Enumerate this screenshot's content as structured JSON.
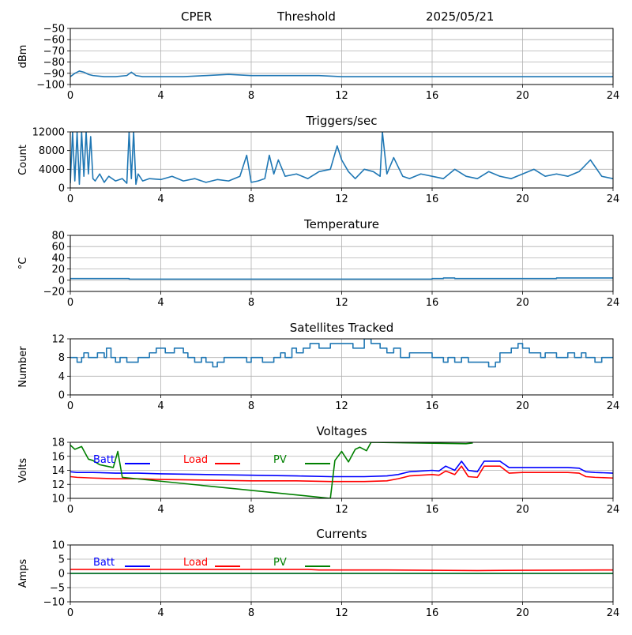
{
  "header": {
    "site": "CPER",
    "mode": "Threshold",
    "date": "2025/05/21"
  },
  "colors": {
    "series_default": "#1f77b4",
    "batt": "#0000ff",
    "load": "#ff0000",
    "pv": "#008000",
    "grid": "#b0b0b0"
  },
  "chart_data": [
    {
      "type": "line",
      "title": "",
      "xlabel": "",
      "ylabel": "dBm",
      "xlim": [
        0,
        24
      ],
      "ylim": [
        -100,
        -50
      ],
      "xticks": [
        "0",
        "4",
        "8",
        "12",
        "16",
        "20",
        "24"
      ],
      "yticks": [
        "−100",
        "−90",
        "−80",
        "−70",
        "−60",
        "−50"
      ],
      "grid": true,
      "series": [
        {
          "name": "",
          "color": "#1f77b4",
          "x": [
            0,
            0.2,
            0.4,
            0.6,
            0.8,
            1.0,
            1.5,
            2.0,
            2.5,
            2.7,
            2.9,
            3.2,
            4,
            5,
            6,
            7,
            8,
            9,
            10,
            11,
            12,
            13,
            14,
            15,
            16,
            17,
            18,
            19,
            20,
            21,
            22,
            23,
            24
          ],
          "y": [
            -93,
            -90,
            -88,
            -89,
            -91,
            -92,
            -93,
            -93,
            -92,
            -89,
            -92,
            -93,
            -93,
            -93,
            -92,
            -91,
            -92,
            -92,
            -92,
            -92,
            -93,
            -93,
            -93,
            -93,
            -93,
            -93,
            -93,
            -93,
            -93,
            -93,
            -93,
            -93,
            -93
          ]
        }
      ]
    },
    {
      "type": "line",
      "title": "Triggers/sec",
      "xlabel": "",
      "ylabel": "Count",
      "xlim": [
        0,
        24
      ],
      "ylim": [
        0,
        12000
      ],
      "xticks": [
        "0",
        "4",
        "8",
        "12",
        "16",
        "20",
        "24"
      ],
      "yticks": [
        "0",
        "4000",
        "8000",
        "12000"
      ],
      "grid": true,
      "series": [
        {
          "name": "",
          "color": "#1f77b4",
          "x": [
            0,
            0.1,
            0.2,
            0.3,
            0.4,
            0.5,
            0.6,
            0.7,
            0.8,
            0.9,
            1.0,
            1.1,
            1.3,
            1.5,
            1.7,
            2.0,
            2.3,
            2.5,
            2.6,
            2.7,
            2.8,
            2.9,
            3.0,
            3.2,
            3.5,
            4.0,
            4.5,
            5.0,
            5.5,
            6.0,
            6.5,
            7.0,
            7.5,
            7.8,
            8.0,
            8.3,
            8.6,
            8.8,
            9.0,
            9.2,
            9.5,
            10.0,
            10.5,
            11.0,
            11.5,
            11.8,
            12.0,
            12.3,
            12.6,
            13.0,
            13.4,
            13.7,
            13.8,
            14.0,
            14.3,
            14.7,
            15.0,
            15.5,
            16.0,
            16.5,
            17.0,
            17.5,
            18.0,
            18.5,
            19.0,
            19.5,
            20.0,
            20.5,
            21.0,
            21.5,
            22.0,
            22.5,
            23.0,
            23.5,
            24.0
          ],
          "y": [
            1000,
            12000,
            1500,
            12000,
            800,
            12000,
            2500,
            12000,
            3000,
            11000,
            2000,
            1500,
            3000,
            1200,
            2500,
            1500,
            2000,
            1000,
            12000,
            2000,
            12000,
            800,
            3000,
            1500,
            2000,
            1800,
            2500,
            1500,
            2000,
            1200,
            1800,
            1500,
            2500,
            7000,
            1200,
            1500,
            2000,
            7000,
            3000,
            6000,
            2500,
            3000,
            2000,
            3500,
            4000,
            9000,
            6000,
            3500,
            2000,
            4000,
            3500,
            2500,
            12000,
            3000,
            6500,
            2500,
            2000,
            3000,
            2500,
            2000,
            4000,
            2500,
            2000,
            3500,
            2500,
            2000,
            3000,
            4000,
            2500,
            3000,
            2500,
            3500,
            6000,
            2500,
            2000
          ]
        }
      ]
    },
    {
      "type": "line",
      "title": "Temperature",
      "xlabel": "",
      "ylabel": "°C",
      "xlim": [
        0,
        24
      ],
      "ylim": [
        -20,
        80
      ],
      "xticks": [
        "0",
        "4",
        "8",
        "12",
        "16",
        "20",
        "24"
      ],
      "yticks": [
        "−20",
        "0",
        "20",
        "40",
        "60",
        "80"
      ],
      "grid": true,
      "series": [
        {
          "name": "",
          "color": "#1f77b4",
          "x": [
            0,
            2.5,
            2.6,
            14,
            16,
            16.5,
            17,
            21,
            21.5,
            23.5,
            24
          ],
          "y": [
            3,
            3,
            2,
            2,
            3,
            4,
            3,
            3,
            4,
            4,
            3
          ]
        }
      ]
    },
    {
      "type": "line",
      "title": "Satellites Tracked",
      "xlabel": "",
      "ylabel": "Number",
      "xlim": [
        0,
        24
      ],
      "ylim": [
        0,
        12
      ],
      "xticks": [
        "0",
        "4",
        "8",
        "12",
        "16",
        "20",
        "24"
      ],
      "yticks": [
        "0",
        "4",
        "8",
        "12"
      ],
      "grid": true,
      "series": [
        {
          "name": "",
          "color": "#1f77b4",
          "x": [
            0,
            0.3,
            0.5,
            0.6,
            0.8,
            1.2,
            1.5,
            1.6,
            1.8,
            2.0,
            2.2,
            2.5,
            3.0,
            3.5,
            3.8,
            4.2,
            4.6,
            5.0,
            5.2,
            5.5,
            5.8,
            6.0,
            6.3,
            6.5,
            6.8,
            7.5,
            7.8,
            8.0,
            8.5,
            9.0,
            9.3,
            9.5,
            9.8,
            10.0,
            10.3,
            10.6,
            11.0,
            11.5,
            12.0,
            12.5,
            13.0,
            13.3,
            13.7,
            14.0,
            14.3,
            14.6,
            15.0,
            15.5,
            16.0,
            16.5,
            16.7,
            17.0,
            17.3,
            17.6,
            18.0,
            18.5,
            18.8,
            19.0,
            19.5,
            19.8,
            20.0,
            20.3,
            20.8,
            21.0,
            21.5,
            22.0,
            22.3,
            22.6,
            22.8,
            23.2,
            23.5,
            24.0
          ],
          "y": [
            8,
            7,
            8,
            9,
            8,
            9,
            8,
            10,
            8,
            7,
            8,
            7,
            8,
            9,
            10,
            9,
            10,
            9,
            8,
            7,
            8,
            7,
            6,
            7,
            8,
            8,
            7,
            8,
            7,
            8,
            9,
            8,
            10,
            9,
            10,
            11,
            10,
            11,
            11,
            10,
            12,
            11,
            10,
            9,
            10,
            8,
            9,
            9,
            8,
            7,
            8,
            7,
            8,
            7,
            7,
            6,
            7,
            9,
            10,
            11,
            10,
            9,
            8,
            9,
            8,
            9,
            8,
            9,
            8,
            7,
            8,
            8
          ]
        }
      ]
    },
    {
      "type": "line",
      "title": "Voltages",
      "xlabel": "",
      "ylabel": "Volts",
      "xlim": [
        0,
        24
      ],
      "ylim": [
        10,
        18
      ],
      "xticks": [
        "0",
        "4",
        "8",
        "12",
        "16",
        "20",
        "24"
      ],
      "yticks": [
        "10",
        "12",
        "14",
        "16",
        "18"
      ],
      "grid": true,
      "legend": "top",
      "series": [
        {
          "name": "Batt",
          "color": "#0000ff",
          "x": [
            0,
            0.3,
            1,
            2,
            3,
            4,
            6,
            8,
            10,
            11.5,
            13,
            14,
            14.5,
            15,
            16,
            16.3,
            16.6,
            17.0,
            17.3,
            17.6,
            18.0,
            18.3,
            19.0,
            19.4,
            20,
            22,
            22.5,
            22.8,
            23.2,
            24
          ],
          "y": [
            13.8,
            13.7,
            13.7,
            13.6,
            13.6,
            13.5,
            13.4,
            13.3,
            13.2,
            13.1,
            13.1,
            13.2,
            13.4,
            13.8,
            14.0,
            13.9,
            14.6,
            14.0,
            15.3,
            14.0,
            13.8,
            15.3,
            15.3,
            14.4,
            14.4,
            14.4,
            14.3,
            13.8,
            13.7,
            13.6
          ]
        },
        {
          "name": "Load",
          "color": "#ff0000",
          "x": [
            0,
            0.3,
            1,
            2,
            3,
            4,
            6,
            8,
            10,
            11.5,
            13,
            14,
            14.5,
            15,
            16,
            16.3,
            16.6,
            17.0,
            17.3,
            17.6,
            18.0,
            18.3,
            19.0,
            19.4,
            20,
            22,
            22.5,
            22.8,
            23.2,
            24
          ],
          "y": [
            13.1,
            13.0,
            12.9,
            12.8,
            12.8,
            12.7,
            12.6,
            12.5,
            12.5,
            12.4,
            12.4,
            12.5,
            12.8,
            13.2,
            13.4,
            13.3,
            13.9,
            13.4,
            14.6,
            13.1,
            13.0,
            14.6,
            14.6,
            13.6,
            13.7,
            13.7,
            13.6,
            13.1,
            13.0,
            12.9
          ]
        },
        {
          "name": "PV",
          "color": "#008000",
          "x": [
            0,
            0.2,
            0.5,
            0.8,
            1.0,
            1.3,
            1.6,
            1.9,
            2.1,
            2.3,
            11.5,
            11.7,
            12.0,
            12.3,
            12.6,
            12.8,
            13.1,
            13.3,
            17.5,
            17.8
          ],
          "y": [
            17.6,
            17.0,
            17.4,
            15.6,
            15.4,
            14.8,
            14.6,
            14.4,
            16.7,
            13.0,
            10.0,
            15.4,
            16.7,
            15.2,
            17.0,
            17.3,
            16.8,
            18.0,
            17.8,
            17.9
          ]
        }
      ]
    },
    {
      "type": "line",
      "title": "Currents",
      "xlabel": "",
      "ylabel": "Amps",
      "xlim": [
        0,
        24
      ],
      "ylim": [
        -10,
        10
      ],
      "xticks": [
        "0",
        "4",
        "8",
        "12",
        "16",
        "20",
        "24"
      ],
      "yticks": [
        "−10",
        "−5",
        "0",
        "5",
        "10"
      ],
      "grid": true,
      "legend": "top",
      "series": [
        {
          "name": "Batt",
          "color": "#0000ff",
          "x": [
            0,
            24
          ],
          "y": [
            0,
            0
          ]
        },
        {
          "name": "Load",
          "color": "#ff0000",
          "x": [
            0,
            4,
            8,
            10.5,
            11,
            14,
            16,
            18,
            20,
            24
          ],
          "y": [
            1.4,
            1.4,
            1.4,
            1.4,
            1.2,
            1.2,
            1.1,
            1.0,
            1.1,
            1.2
          ]
        },
        {
          "name": "PV",
          "color": "#008000",
          "x": [
            0,
            24
          ],
          "y": [
            0,
            0
          ]
        }
      ]
    }
  ]
}
